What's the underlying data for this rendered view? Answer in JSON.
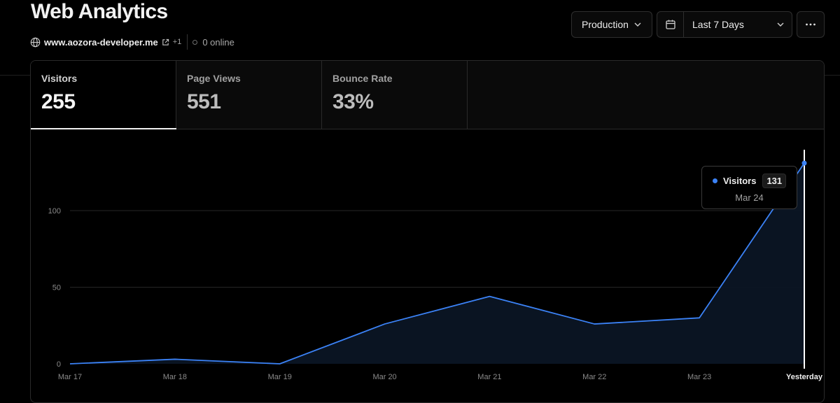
{
  "header": {
    "title": "Web Analytics",
    "domain": "www.aozora-developer.me",
    "extra_domains": "+1",
    "online": "0 online"
  },
  "controls": {
    "environment": "Production",
    "range": "Last 7 Days",
    "calendar_icon": "calendar-icon",
    "more_icon": "ellipsis-icon"
  },
  "tabs": [
    {
      "label": "Visitors",
      "value": "255",
      "active": true
    },
    {
      "label": "Page Views",
      "value": "551",
      "active": false
    },
    {
      "label": "Bounce Rate",
      "value": "33%",
      "active": false
    }
  ],
  "tooltip": {
    "series": "Visitors",
    "value": "131",
    "date": "Mar 24"
  },
  "colors": {
    "accent": "#3b82f6",
    "background": "#000000"
  },
  "chart_data": {
    "type": "area",
    "categories": [
      "Mar 17",
      "Mar 18",
      "Mar 19",
      "Mar 20",
      "Mar 21",
      "Mar 22",
      "Mar 23",
      "Yesterday"
    ],
    "series": [
      {
        "name": "Visitors",
        "values": [
          0,
          3,
          0,
          26,
          44,
          26,
          30,
          131
        ]
      }
    ],
    "yticks": [
      0,
      50,
      100
    ],
    "ylim": [
      0,
      131
    ],
    "grid": true,
    "title": "",
    "xlabel": "",
    "ylabel": ""
  }
}
